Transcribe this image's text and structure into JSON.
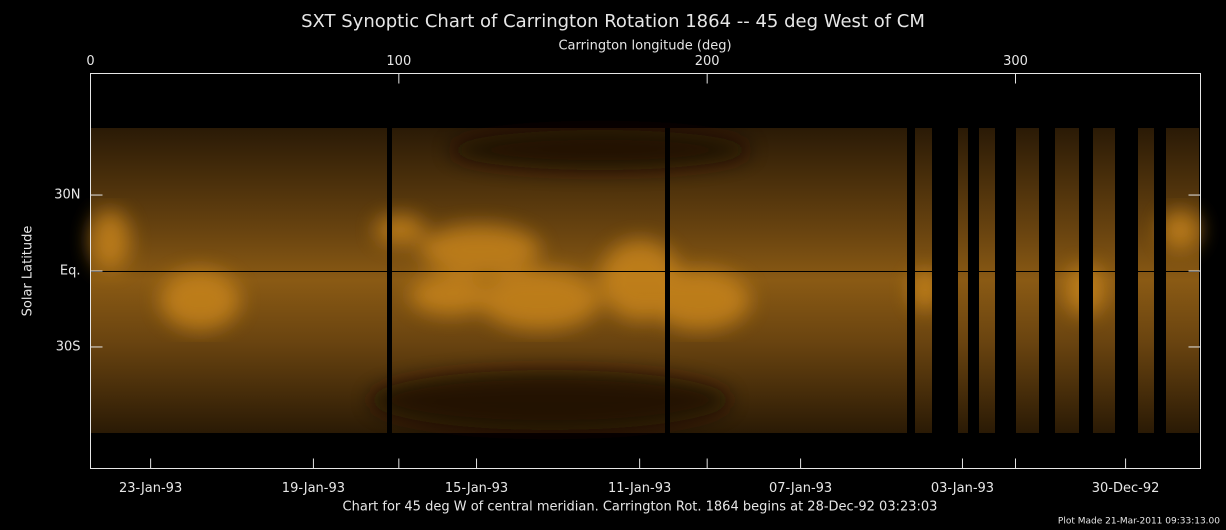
{
  "chart_data": {
    "type": "image",
    "title": "SXT Synoptic Chart of Carrington Rotation 1864 -- 45 deg West of CM",
    "xlabel": "Carrington longitude (deg)",
    "ylabel": "Solar Latitude",
    "xlim": [
      0,
      360
    ],
    "xticks": [
      0,
      100,
      200,
      300
    ],
    "ylim": [
      -78,
      78
    ],
    "yticks": [
      {
        "value": 30,
        "label": "30N"
      },
      {
        "value": 0,
        "label": "Eq."
      },
      {
        "value": -30,
        "label": "30S"
      }
    ],
    "x2ticks": [
      {
        "value": 19.5,
        "label": "23-Jan-93"
      },
      {
        "value": 72.3,
        "label": "19-Jan-93"
      },
      {
        "value": 125.2,
        "label": "15-Jan-93"
      },
      {
        "value": 178.1,
        "label": "11-Jan-93"
      },
      {
        "value": 230.3,
        "label": "07-Jan-93"
      },
      {
        "value": 282.8,
        "label": "03-Jan-93"
      },
      {
        "value": 335.7,
        "label": "30-Dec-92"
      }
    ],
    "note": "Chart for 45 deg W of central meridian.  Carrington Rot. 1864 begins at 28-Dec-92 03:23:03",
    "plot_made": "Plot Made 21-Mar-2011 09:33:13.00"
  }
}
